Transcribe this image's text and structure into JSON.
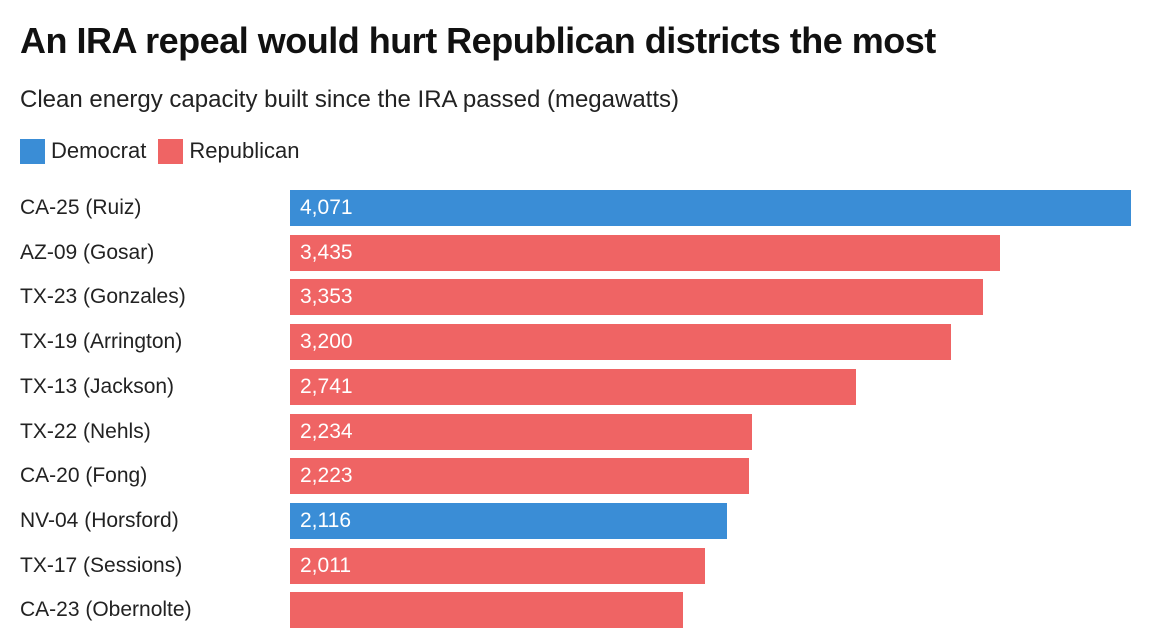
{
  "chart_data": {
    "type": "bar",
    "orientation": "horizontal",
    "title": "An IRA repeal would hurt Republican districts the most",
    "subtitle": "Clean energy capacity built since the IRA passed (megawatts)",
    "legend": [
      {
        "name": "Democrat",
        "color": "#3a8dd6"
      },
      {
        "name": "Republican",
        "color": "#ef6464"
      }
    ],
    "legend_placement": "top-left",
    "xlim": [
      0,
      4071
    ],
    "categories": [
      "CA-25 (Ruiz)",
      "AZ-09 (Gosar)",
      "TX-23 (Gonzales)",
      "TX-19 (Arrington)",
      "TX-13 (Jackson)",
      "TX-22 (Nehls)",
      "CA-20 (Fong)",
      "NV-04 (Horsford)",
      "TX-17 (Sessions)",
      "CA-23 (Obernolte)"
    ],
    "values": [
      4071,
      3435,
      3353,
      3200,
      2741,
      2234,
      2223,
      2116,
      2011,
      1902
    ],
    "value_labels": [
      "4,071",
      "3,435",
      "3,353",
      "3,200",
      "2,741",
      "2,234",
      "2,223",
      "2,116",
      "2,011",
      ""
    ],
    "party": [
      "Democrat",
      "Republican",
      "Republican",
      "Republican",
      "Republican",
      "Republican",
      "Republican",
      "Democrat",
      "Republican",
      "Republican"
    ]
  }
}
